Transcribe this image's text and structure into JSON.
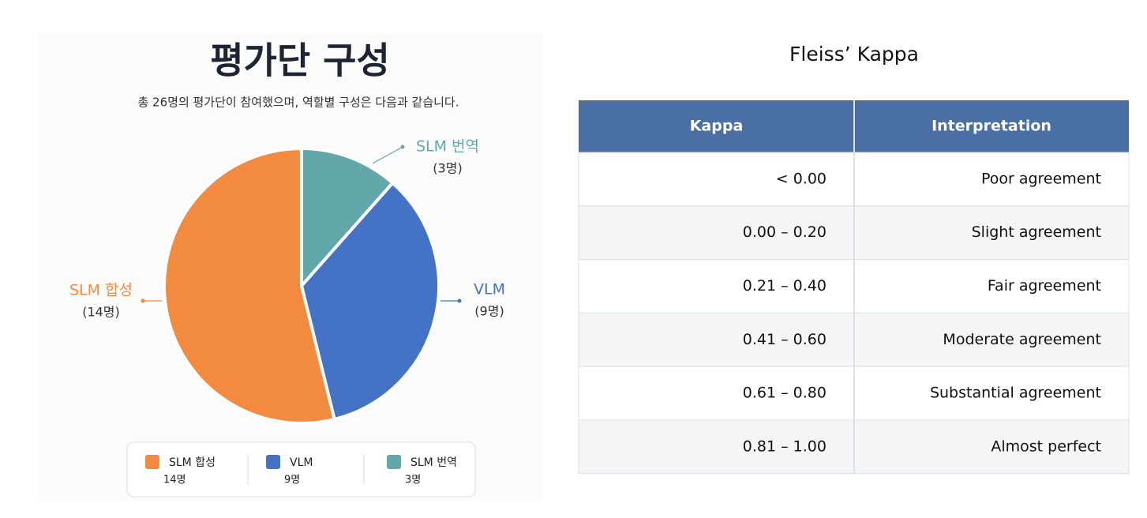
{
  "chart_data": {
    "type": "pie",
    "title": "평가단 구성",
    "subtitle": "총 26명의 평가단이 참여했으며, 역할별 구성은 다음과 같습니다.",
    "series": [
      {
        "name": "SLM 합성",
        "color": "#f28a3f",
        "values": [
          14
        ],
        "value_labels": [
          "(14명)"
        ],
        "legend_value_labels": [
          "14명"
        ]
      },
      {
        "name": "VLM",
        "color": "#4472c4",
        "values": [
          9
        ],
        "value_labels": [
          "(9명)"
        ],
        "legend_value_labels": [
          "9명"
        ]
      },
      {
        "name": "SLM 번역",
        "color": "#62a8aa",
        "values": [
          3
        ],
        "value_labels": [
          "(3명)"
        ],
        "legend_value_labels": [
          "3명"
        ]
      }
    ]
  },
  "table": {
    "title": "Fleiss’ Kappa",
    "header": [
      "Kappa",
      "Interpretation"
    ],
    "rows": [
      [
        "< 0.00",
        "Poor agreement"
      ],
      [
        "0.00 – 0.20",
        "Slight agreement"
      ],
      [
        "0.21 – 0.40",
        "Fair agreement"
      ],
      [
        "0.41 – 0.60",
        "Moderate agreement"
      ],
      [
        "0.61 – 0.80",
        "Substantial agreement"
      ],
      [
        "0.81 – 1.00",
        "Almost perfect"
      ]
    ]
  }
}
